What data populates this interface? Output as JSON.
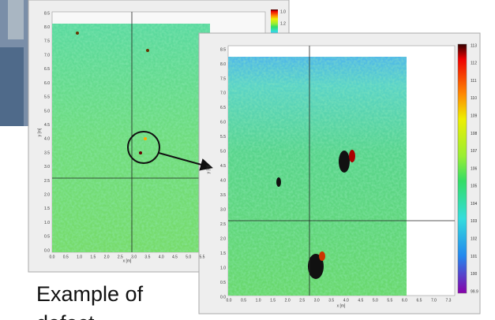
{
  "panels": [
    {
      "y_label": "y [m]",
      "x_label": "x [m]",
      "y_ticks": [
        "8.5",
        "8.0",
        "7.5",
        "7.0",
        "6.5",
        "6.0",
        "5.5",
        "5.0",
        "4.5",
        "4.0",
        "3.5",
        "3.0",
        "2.5",
        "2.0",
        "1.5",
        "1.0",
        "0.5",
        "0.0"
      ],
      "x_ticks": [
        "0.0",
        "0.5",
        "1.0",
        "1.5",
        "2.0",
        "2.5",
        "3.0",
        "3.5",
        "4.0",
        "4.5",
        "5.0",
        "5.5"
      ],
      "colorbar_ticks": [
        "1.0",
        "1.2"
      ]
    },
    {
      "y_label": "y [m]",
      "x_label": "x [m]",
      "y_ticks": [
        "8.5",
        "8.0",
        "7.5",
        "7.0",
        "6.5",
        "6.0",
        "5.5",
        "5.0",
        "4.5",
        "4.0",
        "3.5",
        "3.0",
        "2.5",
        "2.0",
        "1.5",
        "1.0",
        "0.5",
        "0.0"
      ],
      "x_ticks": [
        "0.0",
        "0.5",
        "1.0",
        "1.5",
        "2.0",
        "2.5",
        "3.0",
        "3.5",
        "4.0",
        "4.5",
        "5.0",
        "5.5",
        "6.0",
        "6.5",
        "7.0",
        "7.3"
      ],
      "colorbar_ticks": [
        "113",
        "112",
        "111",
        "110",
        "109",
        "108",
        "107",
        "106",
        "105",
        "104",
        "103",
        "102",
        "101",
        "100",
        "99.9"
      ]
    }
  ],
  "caption": [
    "Example of",
    "defect"
  ]
}
